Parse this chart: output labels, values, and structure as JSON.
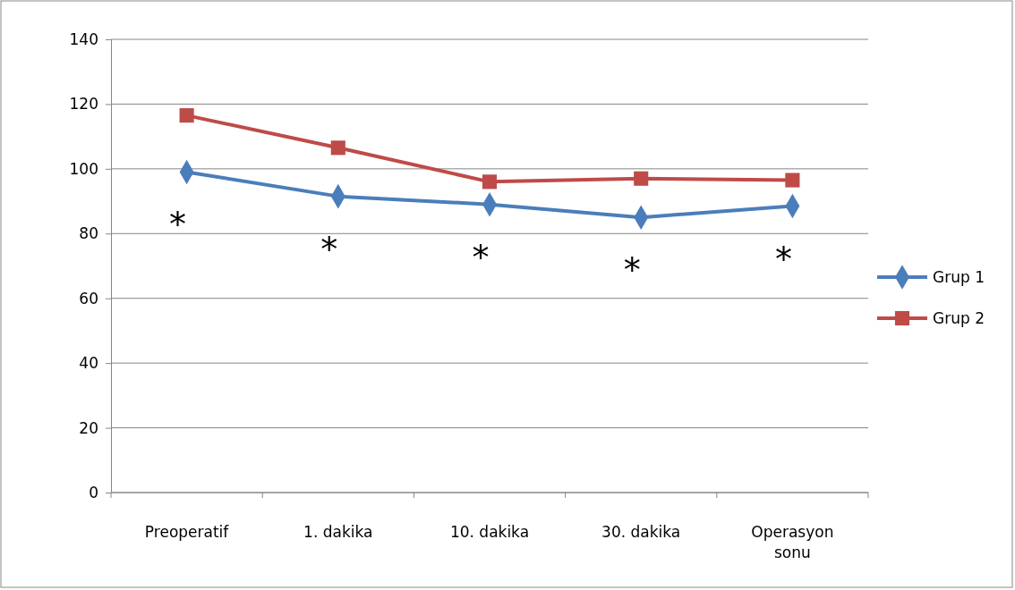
{
  "chart_data": {
    "type": "line",
    "categories": [
      "Preoperatif",
      "1. dakika",
      "10. dakika",
      "30. dakika",
      "Operasyon sonu"
    ],
    "series": [
      {
        "name": "Grup 1",
        "color": "#4a7ebb",
        "marker": "diamond",
        "values": [
          99,
          91.5,
          89,
          85,
          88.5
        ]
      },
      {
        "name": "Grup 2",
        "color": "#be4b48",
        "marker": "square",
        "values": [
          116.5,
          106.5,
          96,
          97,
          96.5
        ]
      }
    ],
    "ylim": [
      0,
      140
    ],
    "yticks": [
      0,
      20,
      40,
      60,
      80,
      100,
      120,
      140
    ],
    "grid": "y",
    "legend": "right",
    "line_style": "solid",
    "annotations": [
      {
        "text": "*",
        "x": "Preoperatif",
        "y": 99
      },
      {
        "text": "*",
        "x": "1. dakika",
        "y": 91.5
      },
      {
        "text": "*",
        "x": "10. dakika",
        "y": 89
      },
      {
        "text": "*",
        "x": "30. dakika",
        "y": 85
      },
      {
        "text": "*",
        "x": "Operasyon sonu",
        "y": 88.5
      }
    ]
  }
}
